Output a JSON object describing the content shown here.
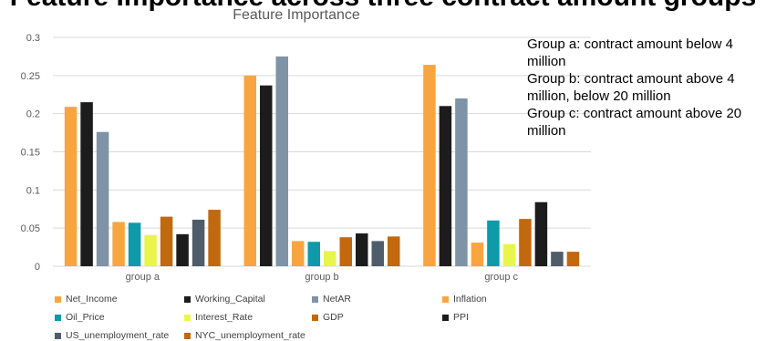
{
  "header": {
    "partial_title": "Feature Importance across three contract amount groups"
  },
  "notes": [
    "Group a: contract amount below 4 million",
    "Group b: contract amount above 4 million, below 20 million",
    "Group c: contract amount above 20 million"
  ],
  "chart_data": {
    "type": "bar",
    "title": "Feature Importance",
    "xlabel": "",
    "ylabel": "",
    "categories": [
      "group a",
      "group b",
      "group c"
    ],
    "ylim": [
      0,
      0.3
    ],
    "yticks": [
      "0",
      "0.05",
      "0.1",
      "0.15",
      "0.2",
      "0.25",
      "0.3"
    ],
    "grid": true,
    "legend_position": "bottom",
    "series": [
      {
        "name": "Net_Income",
        "color": "#F8A53F",
        "values": [
          0.209,
          0.25,
          0.264
        ]
      },
      {
        "name": "Working_Capital",
        "color": "#1C1C1C",
        "values": [
          0.215,
          0.237,
          0.21
        ]
      },
      {
        "name": "NetAR",
        "color": "#7F93A6",
        "values": [
          0.176,
          0.275,
          0.22
        ]
      },
      {
        "name": "Inflation",
        "color": "#F8A53F",
        "values": [
          0.058,
          0.033,
          0.031
        ]
      },
      {
        "name": "Oil_Price",
        "color": "#0E9AA8",
        "values": [
          0.057,
          0.032,
          0.06
        ]
      },
      {
        "name": "Interest_Rate",
        "color": "#E8F54A",
        "values": [
          0.041,
          0.02,
          0.029
        ]
      },
      {
        "name": "GDP",
        "color": "#C2680F",
        "values": [
          0.065,
          0.038,
          0.062
        ]
      },
      {
        "name": "PPI",
        "color": "#1C1C1C",
        "values": [
          0.042,
          0.043,
          0.084
        ]
      },
      {
        "name": "US_unemployment_rate",
        "color": "#4F5D6B",
        "values": [
          0.061,
          0.033,
          0.019
        ]
      },
      {
        "name": "NYC_unemployment_rate",
        "color": "#C2680F",
        "values": [
          0.074,
          0.039,
          0.019
        ]
      }
    ]
  }
}
